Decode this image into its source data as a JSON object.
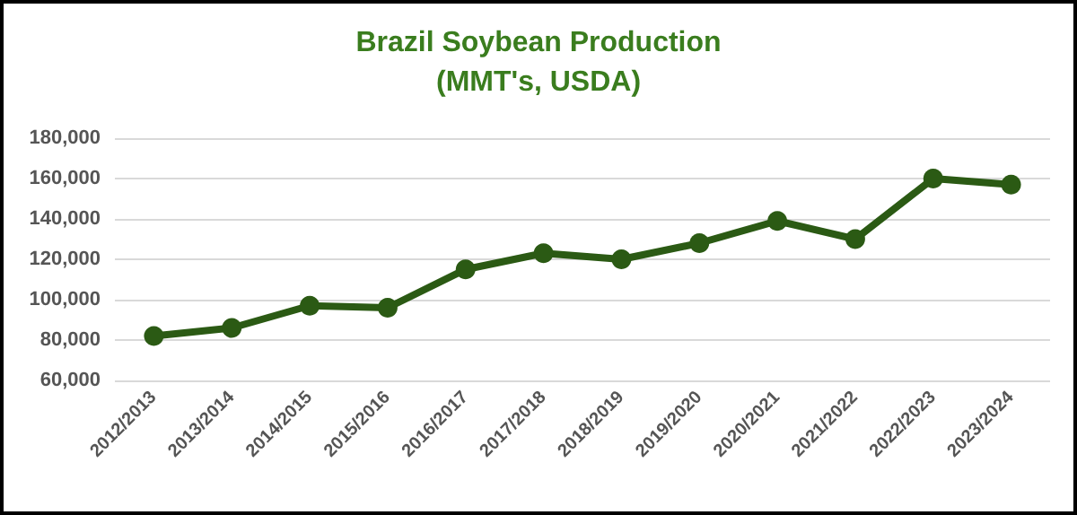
{
  "chart_data": {
    "type": "line",
    "title": "Brazil Soybean Production\n(MMT's, USDA)",
    "categories": [
      "2012/2013",
      "2013/2014",
      "2014/2015",
      "2015/2016",
      "2016/2017",
      "2017/2018",
      "2018/2019",
      "2019/2020",
      "2020/2021",
      "2021/2022",
      "2022/2023",
      "2023/2024"
    ],
    "series": [
      {
        "color": "#2b5a14",
        "values": [
          82000,
          86000,
          97000,
          96000,
          115000,
          123000,
          120000,
          128000,
          139000,
          130000,
          160000,
          157000
        ]
      }
    ],
    "ylim": [
      60000,
      180000
    ],
    "yticks": [
      {
        "value": 60000,
        "label": "60,000"
      },
      {
        "value": 80000,
        "label": "80,000"
      },
      {
        "value": 100000,
        "label": "100,000"
      },
      {
        "value": 120000,
        "label": "120,000"
      },
      {
        "value": 140000,
        "label": "140,000"
      },
      {
        "value": 160000,
        "label": "160,000"
      },
      {
        "value": 180000,
        "label": "180,000"
      }
    ],
    "grid": "y",
    "marker": "circle",
    "line_style": "solid"
  }
}
